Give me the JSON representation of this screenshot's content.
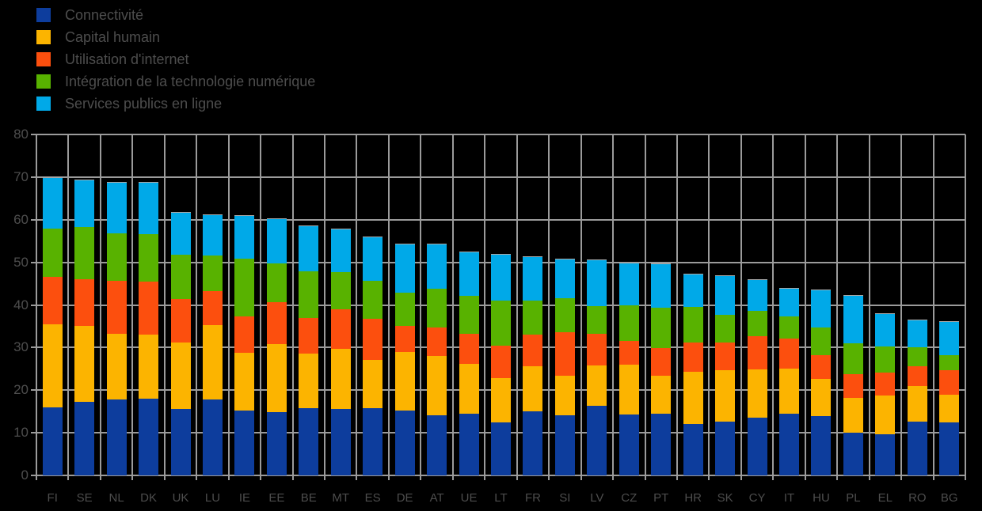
{
  "background_color": "#000000",
  "text_color": "#4d4d4d",
  "grid_color": "#9b9b9b",
  "chart_data": {
    "type": "bar",
    "stacked": true,
    "title": "",
    "xlabel": "",
    "ylabel": "",
    "ylim": [
      0,
      80
    ],
    "yticks": [
      0,
      10,
      20,
      30,
      40,
      50,
      60,
      70,
      80
    ],
    "grid": true,
    "legend_position": "top-left",
    "categories": [
      "FI",
      "SE",
      "NL",
      "DK",
      "UK",
      "LU",
      "IE",
      "EE",
      "BE",
      "MT",
      "ES",
      "DE",
      "AT",
      "UE",
      "LT",
      "FR",
      "SI",
      "LV",
      "CZ",
      "PT",
      "HR",
      "SK",
      "CY",
      "IT",
      "HU",
      "PL",
      "EL",
      "RO",
      "BG"
    ],
    "series": [
      {
        "name": "Connectivité",
        "color": "#0d3d9d",
        "values": [
          16.0,
          17.2,
          17.8,
          18.0,
          15.5,
          17.9,
          15.3,
          14.9,
          15.8,
          15.6,
          15.8,
          15.3,
          14.1,
          14.4,
          12.4,
          15.0,
          14.1,
          16.3,
          14.3,
          14.4,
          12.1,
          12.7,
          13.5,
          14.5,
          13.9,
          10.0,
          9.6,
          12.7,
          12.4
        ]
      },
      {
        "name": "Capital humain",
        "color": "#fcb400",
        "values": [
          19.4,
          17.9,
          15.5,
          15.1,
          15.6,
          17.4,
          13.5,
          16.0,
          12.7,
          14.1,
          11.3,
          13.6,
          13.9,
          11.8,
          10.5,
          10.7,
          9.3,
          9.5,
          11.7,
          9.0,
          12.2,
          11.9,
          11.4,
          10.5,
          8.7,
          8.2,
          9.1,
          8.2,
          6.6
        ]
      },
      {
        "name": "Utilisation d'internet",
        "color": "#fc4f0e",
        "values": [
          11.2,
          11.0,
          12.3,
          12.4,
          10.2,
          8.0,
          8.5,
          9.8,
          8.5,
          9.3,
          9.6,
          6.2,
          6.8,
          7.1,
          7.6,
          7.4,
          10.2,
          7.5,
          5.5,
          6.5,
          6.9,
          6.6,
          7.8,
          7.2,
          5.7,
          5.6,
          5.4,
          4.8,
          5.7
        ]
      },
      {
        "name": "Intégration de la technologie numérique",
        "color": "#58b200",
        "values": [
          11.4,
          12.1,
          11.2,
          11.1,
          10.5,
          8.3,
          13.6,
          9.0,
          10.8,
          8.7,
          8.9,
          7.8,
          9.0,
          8.9,
          10.6,
          7.9,
          8.0,
          6.5,
          8.5,
          9.4,
          8.3,
          6.4,
          6.0,
          5.2,
          6.4,
          7.2,
          6.2,
          4.3,
          3.6
        ]
      },
      {
        "name": "Services publics en ligne",
        "color": "#00a9e8",
        "values": [
          11.9,
          11.3,
          12.1,
          12.2,
          10.1,
          9.6,
          10.2,
          10.6,
          10.9,
          10.3,
          10.5,
          11.5,
          10.5,
          10.3,
          10.9,
          10.4,
          9.2,
          10.9,
          10.0,
          10.5,
          7.9,
          9.3,
          7.3,
          6.5,
          9.0,
          11.3,
          7.7,
          6.5,
          7.9
        ]
      }
    ],
    "totals": [
      69.9,
      69.5,
      68.9,
      68.8,
      61.9,
      61.2,
      61.1,
      60.3,
      58.7,
      58.0,
      56.1,
      54.4,
      54.3,
      52.5,
      52.0,
      51.4,
      50.8,
      50.7,
      50.0,
      49.8,
      47.4,
      46.9,
      46.0,
      43.9,
      43.7,
      42.3,
      38.0,
      36.5,
      36.2
    ]
  }
}
